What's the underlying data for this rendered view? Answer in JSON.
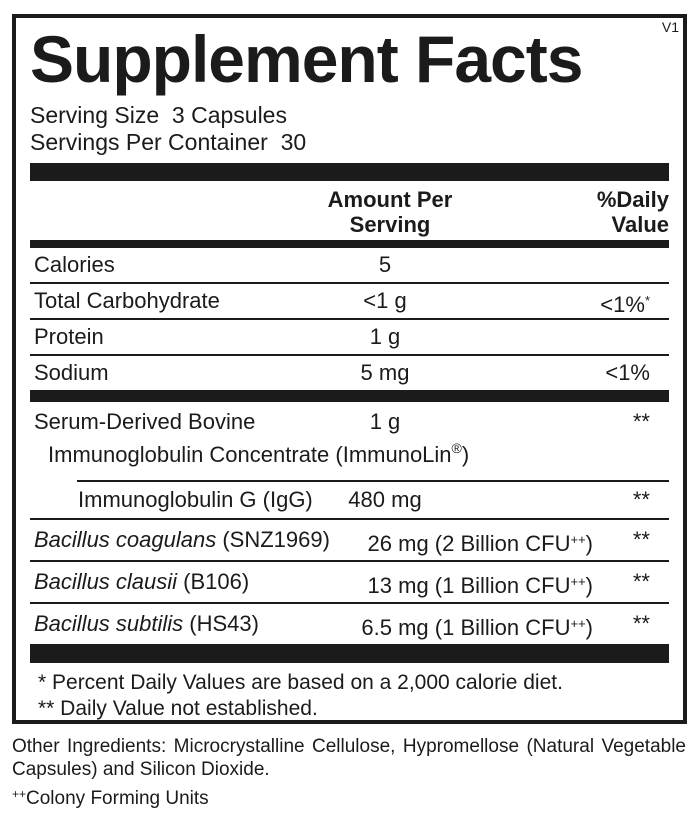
{
  "colors": {
    "ink": "#1b1b1b",
    "paper": "#ffffff"
  },
  "version_tag": "V1",
  "title": "Supplement Facts",
  "serving": {
    "size_line": "Serving Size  3 Capsules",
    "per_container_line": "Servings Per Container  30"
  },
  "column_headers": {
    "amount": "Amount Per\nServing",
    "daily_value": "%Daily\nValue"
  },
  "table": {
    "rows": [
      {
        "name": "Calories",
        "amount": "5"
      },
      {
        "name": "Total Carbohydrate",
        "amount": "<1 g",
        "dv": "<1%",
        "dv_sup": "*"
      },
      {
        "name": "Protein",
        "amount": "1 g"
      },
      {
        "name": "Sodium",
        "amount": "5 mg",
        "dv": "<1%"
      },
      {
        "name_line1": "Serum-Derived Bovine",
        "name_line2": "Immunoglobulin Concentrate (ImmunoLin",
        "name_line2_sup": "®",
        "name_line2_close": ")",
        "amount": "1 g",
        "dv": "**"
      },
      {
        "name": "Immunoglobulin G (IgG)",
        "amount": "480 mg",
        "dv": "**"
      },
      {
        "name_italic": "Bacillus coagulans",
        "name_regular": " (SNZ1969)",
        "amount_pre": "26 mg (2 Billion CFU",
        "amount_sup": "++",
        "amount_close": ")",
        "dv": "**"
      },
      {
        "name_italic": "Bacillus clausii",
        "name_regular": " (B106)",
        "amount_pre": "13 mg (1 Billion CFU",
        "amount_sup": "++",
        "amount_close": ")",
        "dv": "**"
      },
      {
        "name_italic": "Bacillus subtilis",
        "name_regular": " (HS43)",
        "amount_pre": "6.5 mg (1 Billion CFU",
        "amount_sup": "++",
        "amount_close": ")",
        "dv": "**"
      }
    ]
  },
  "footnotes": {
    "line1": "* Percent Daily Values are based on a 2,000 calorie diet.",
    "line2": "** Daily Value not established."
  },
  "other_ingredients": "Other Ingredients: Microcrystalline Cellulose, Hypromellose (Natural Vegetable Capsules) and Silicon Dioxide.",
  "cfu_note": {
    "sup": "++",
    "text": "Colony Forming Units"
  }
}
